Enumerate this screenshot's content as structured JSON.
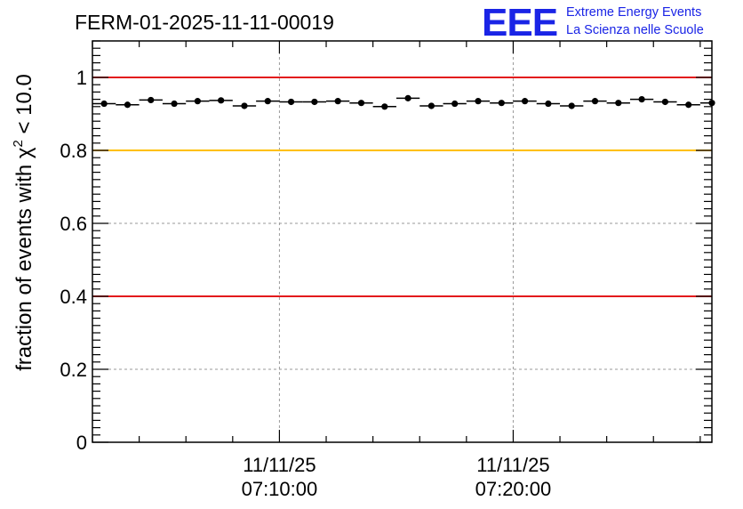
{
  "chart_data": {
    "type": "scatter",
    "title": "FERM-01-2025-11-11-00019",
    "ylabel": {
      "prefix": "fraction of events with ",
      "symbol": "χ",
      "exponent": "2",
      "suffix": " < 10.0"
    },
    "xlabel": "",
    "ylim": [
      0,
      1.1
    ],
    "xlim_minutes": [
      0,
      26.5
    ],
    "y_ticks": [
      {
        "value": 0,
        "label": "0"
      },
      {
        "value": 0.2,
        "label": "0.2"
      },
      {
        "value": 0.4,
        "label": "0.4"
      },
      {
        "value": 0.6,
        "label": "0.6"
      },
      {
        "value": 0.8,
        "label": "0.8"
      },
      {
        "value": 1.0,
        "label": "1"
      }
    ],
    "x_ticks": [
      {
        "minute": 8.0,
        "date": "11/11/25",
        "time": "07:10:00"
      },
      {
        "minute": 18.0,
        "date": "11/11/25",
        "time": "07:20:00"
      }
    ],
    "reference_lines": [
      {
        "y": 1.0,
        "color": "#e31a1c",
        "name": "upper-red"
      },
      {
        "y": 0.8,
        "color": "#ffc000",
        "name": "yellow"
      },
      {
        "y": 0.4,
        "color": "#e31a1c",
        "name": "lower-red"
      }
    ],
    "series": [
      {
        "name": "fraction",
        "marker_color": "#000000",
        "bin_width_minutes": 1.0,
        "x": [
          0.5,
          1.5,
          2.5,
          3.5,
          4.5,
          5.5,
          6.5,
          7.5,
          8.5,
          9.5,
          10.5,
          11.5,
          12.5,
          13.5,
          14.5,
          15.5,
          16.5,
          17.5,
          18.5,
          19.5,
          20.5,
          21.5,
          22.5,
          23.5,
          24.5,
          25.5,
          26.5
        ],
        "y": [
          0.928,
          0.925,
          0.938,
          0.928,
          0.935,
          0.937,
          0.922,
          0.935,
          0.933,
          0.933,
          0.935,
          0.93,
          0.92,
          0.943,
          0.922,
          0.928,
          0.935,
          0.93,
          0.935,
          0.928,
          0.922,
          0.935,
          0.93,
          0.94,
          0.933,
          0.925,
          0.93
        ]
      }
    ],
    "grid": true
  },
  "logo": {
    "mark": "EEE",
    "line1": "Extreme Energy Events",
    "line2": "La Scienza nelle Scuole",
    "color": "#1a24e6"
  }
}
